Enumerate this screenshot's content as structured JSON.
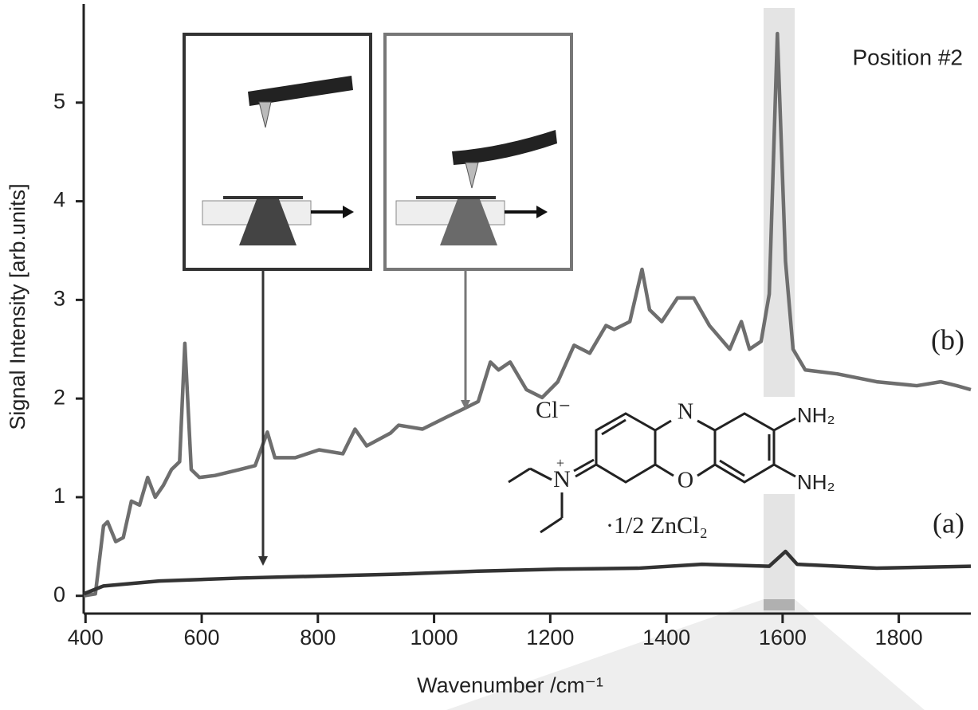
{
  "chart_data": {
    "type": "line",
    "xlabel": "Wavenumber /cm⁻¹",
    "ylabel": "Signal Intensity [arb.units]",
    "xlim": [
      390,
      1924
    ],
    "ylim": [
      -0.18,
      6.0
    ],
    "xticks": [
      400,
      600,
      800,
      1000,
      1200,
      1400,
      1600,
      1800
    ],
    "yticks": [
      0,
      1,
      2,
      3,
      4,
      5
    ],
    "annotations": {
      "position": "Position #2",
      "counter_ion": "Cl⁻",
      "amine_top": "NH₂",
      "amine_bottom": "NH₂",
      "ring_n": "N",
      "ring_o": "O",
      "imine_n": "N",
      "charge": "+",
      "salt": "·1/2 ZnCl₂"
    },
    "series": [
      {
        "name": "(b)",
        "color": "#6e6e6e",
        "x": [
          397,
          417,
          431,
          438,
          452,
          465,
          479,
          493,
          507,
          520,
          534,
          548,
          562,
          571,
          582,
          596,
          623,
          665,
          692,
          713,
          726,
          761,
          802,
          843,
          864,
          884,
          925,
          939,
          980,
          1021,
          1049,
          1076,
          1097,
          1111,
          1131,
          1159,
          1186,
          1213,
          1241,
          1268,
          1296,
          1310,
          1337,
          1358,
          1371,
          1392,
          1419,
          1447,
          1474,
          1509,
          1529,
          1543,
          1563,
          1577,
          1591,
          1605,
          1618,
          1639,
          1694,
          1762,
          1831,
          1872,
          1900,
          1924
        ],
        "values": [
          0,
          0.02,
          0.71,
          0.75,
          0.55,
          0.59,
          0.96,
          0.92,
          1.2,
          1.0,
          1.12,
          1.28,
          1.36,
          2.56,
          1.28,
          1.2,
          1.22,
          1.28,
          1.32,
          1.66,
          1.4,
          1.4,
          1.48,
          1.44,
          1.69,
          1.52,
          1.65,
          1.73,
          1.69,
          1.81,
          1.89,
          1.97,
          2.37,
          2.29,
          2.37,
          2.09,
          2.01,
          2.17,
          2.54,
          2.46,
          2.74,
          2.7,
          2.78,
          3.31,
          2.9,
          2.78,
          3.02,
          3.02,
          2.74,
          2.5,
          2.78,
          2.5,
          2.58,
          3.06,
          5.7,
          3.39,
          2.5,
          2.29,
          2.25,
          2.17,
          2.13,
          2.17,
          2.13,
          2.09
        ]
      },
      {
        "name": "(a)",
        "color": "#333333",
        "x": [
          397,
          431,
          527,
          665,
          802,
          939,
          1076,
          1213,
          1351,
          1461,
          1577,
          1605,
          1625,
          1762,
          1924
        ],
        "values": [
          0.02,
          0.1,
          0.15,
          0.18,
          0.2,
          0.22,
          0.25,
          0.27,
          0.28,
          0.32,
          0.3,
          0.45,
          0.32,
          0.28,
          0.3
        ]
      }
    ]
  }
}
